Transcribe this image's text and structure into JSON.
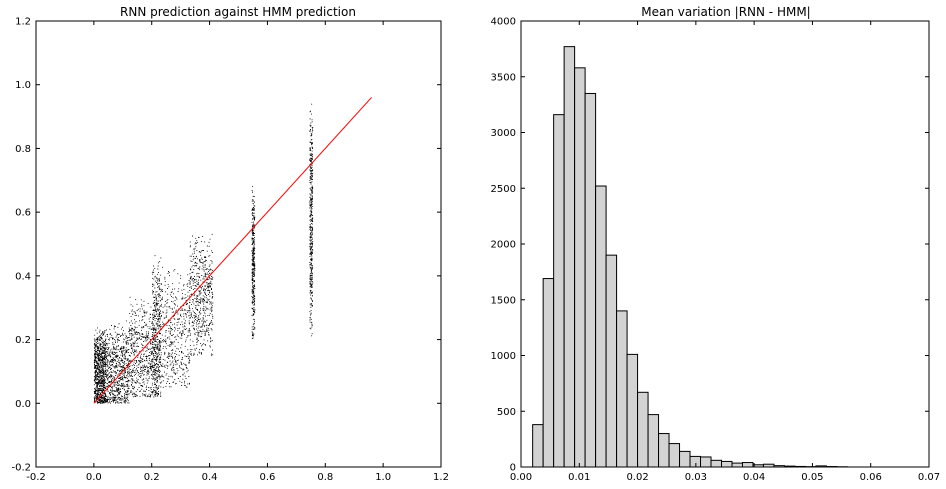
{
  "chart_data": [
    {
      "type": "scatter",
      "title": "RNN prediction against HMM prediction",
      "xlabel": "",
      "ylabel": "",
      "xlim": [
        -0.2,
        1.2
      ],
      "ylim": [
        -0.2,
        1.2
      ],
      "xticks": [
        "-0.2",
        "0.0",
        "0.2",
        "0.4",
        "0.6",
        "0.8",
        "1.0",
        "1.2"
      ],
      "yticks": [
        "-0.2",
        "0.0",
        "0.2",
        "0.4",
        "0.6",
        "0.8",
        "1.0",
        "1.2"
      ],
      "grid": false,
      "point_color": "#000000",
      "line_color": "#ff0000",
      "reference_line": {
        "x": [
          0.0,
          0.96
        ],
        "y": [
          0.0,
          0.96
        ]
      },
      "clusters": [
        {
          "x_min": 0.0,
          "x_max": 0.04,
          "y_min": 0.0,
          "y_max": 0.3,
          "count": 900
        },
        {
          "x_min": 0.04,
          "x_max": 0.12,
          "y_min": 0.0,
          "y_max": 0.32,
          "count": 700
        },
        {
          "x_min": 0.12,
          "x_max": 0.2,
          "y_min": 0.02,
          "y_max": 0.4,
          "count": 500
        },
        {
          "x_min": 0.2,
          "x_max": 0.23,
          "y_min": 0.02,
          "y_max": 0.55,
          "count": 500
        },
        {
          "x_min": 0.23,
          "x_max": 0.33,
          "y_min": 0.05,
          "y_max": 0.5,
          "count": 450
        },
        {
          "x_min": 0.33,
          "x_max": 0.41,
          "y_min": 0.15,
          "y_max": 0.6,
          "count": 550
        },
        {
          "x_min": 0.545,
          "x_max": 0.555,
          "y_min": 0.2,
          "y_max": 0.75,
          "count": 350
        },
        {
          "x_min": 0.745,
          "x_max": 0.755,
          "y_min": 0.21,
          "y_max": 0.96,
          "count": 450
        }
      ]
    },
    {
      "type": "bar",
      "title": "Mean variation |RNN - HMM|",
      "xlabel": "",
      "ylabel": "",
      "xlim": [
        0.0,
        0.07
      ],
      "ylim": [
        0,
        4000
      ],
      "xticks": [
        "0.00",
        "0.01",
        "0.02",
        "0.03",
        "0.04",
        "0.05",
        "0.06",
        "0.07"
      ],
      "yticks": [
        "0",
        "500",
        "1000",
        "1500",
        "2000",
        "2500",
        "3000",
        "3500",
        "4000"
      ],
      "grid": false,
      "bar_fill": "#d3d3d3",
      "bar_stroke": "#000000",
      "bin_start": 0.002,
      "bin_width": 0.0018,
      "values": [
        380,
        1690,
        3160,
        3770,
        3580,
        3350,
        2520,
        1900,
        1400,
        1010,
        670,
        470,
        300,
        210,
        140,
        95,
        90,
        60,
        50,
        35,
        40,
        20,
        25,
        12,
        8,
        5,
        3,
        10,
        4,
        2
      ]
    }
  ]
}
